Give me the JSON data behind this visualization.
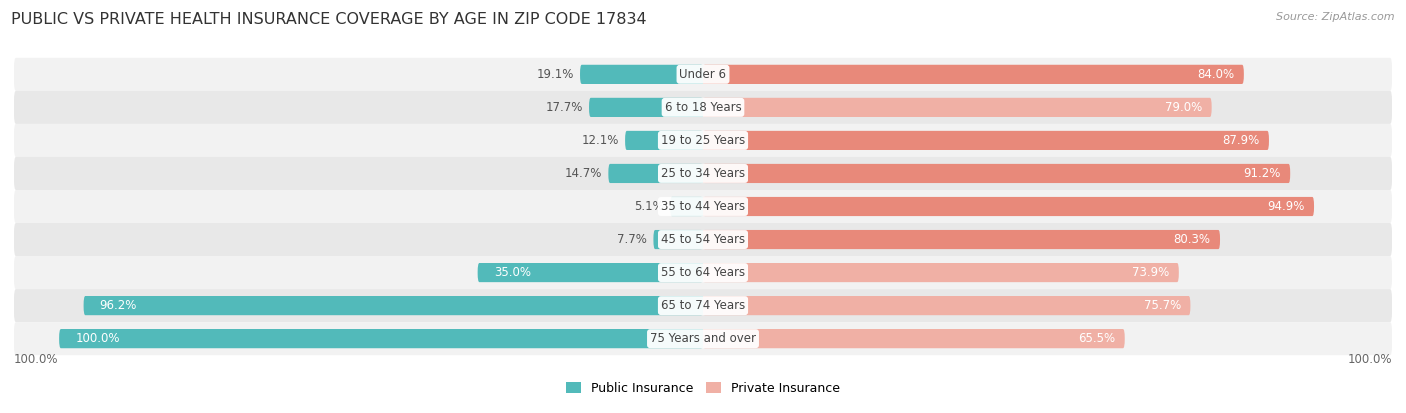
{
  "title": "PUBLIC VS PRIVATE HEALTH INSURANCE COVERAGE BY AGE IN ZIP CODE 17834",
  "source": "Source: ZipAtlas.com",
  "categories": [
    "Under 6",
    "6 to 18 Years",
    "19 to 25 Years",
    "25 to 34 Years",
    "35 to 44 Years",
    "45 to 54 Years",
    "55 to 64 Years",
    "65 to 74 Years",
    "75 Years and over"
  ],
  "public_values": [
    19.1,
    17.7,
    12.1,
    14.7,
    5.1,
    7.7,
    35.0,
    96.2,
    100.0
  ],
  "private_values": [
    84.0,
    79.0,
    87.9,
    91.2,
    94.9,
    80.3,
    73.9,
    75.7,
    65.5
  ],
  "public_color": "#52baba",
  "private_color": "#e8897a",
  "private_color_light": "#f0b0a5",
  "row_colors": [
    "#f2f2f2",
    "#e8e8e8"
  ],
  "label_color_dark": "#555555",
  "label_color_white": "#ffffff",
  "max_value": 100.0,
  "bar_height": 0.58,
  "title_fontsize": 11.5,
  "label_fontsize": 8.5,
  "cat_fontsize": 8.5,
  "legend_fontsize": 9,
  "source_fontsize": 8,
  "bottom_label": "100.0%"
}
